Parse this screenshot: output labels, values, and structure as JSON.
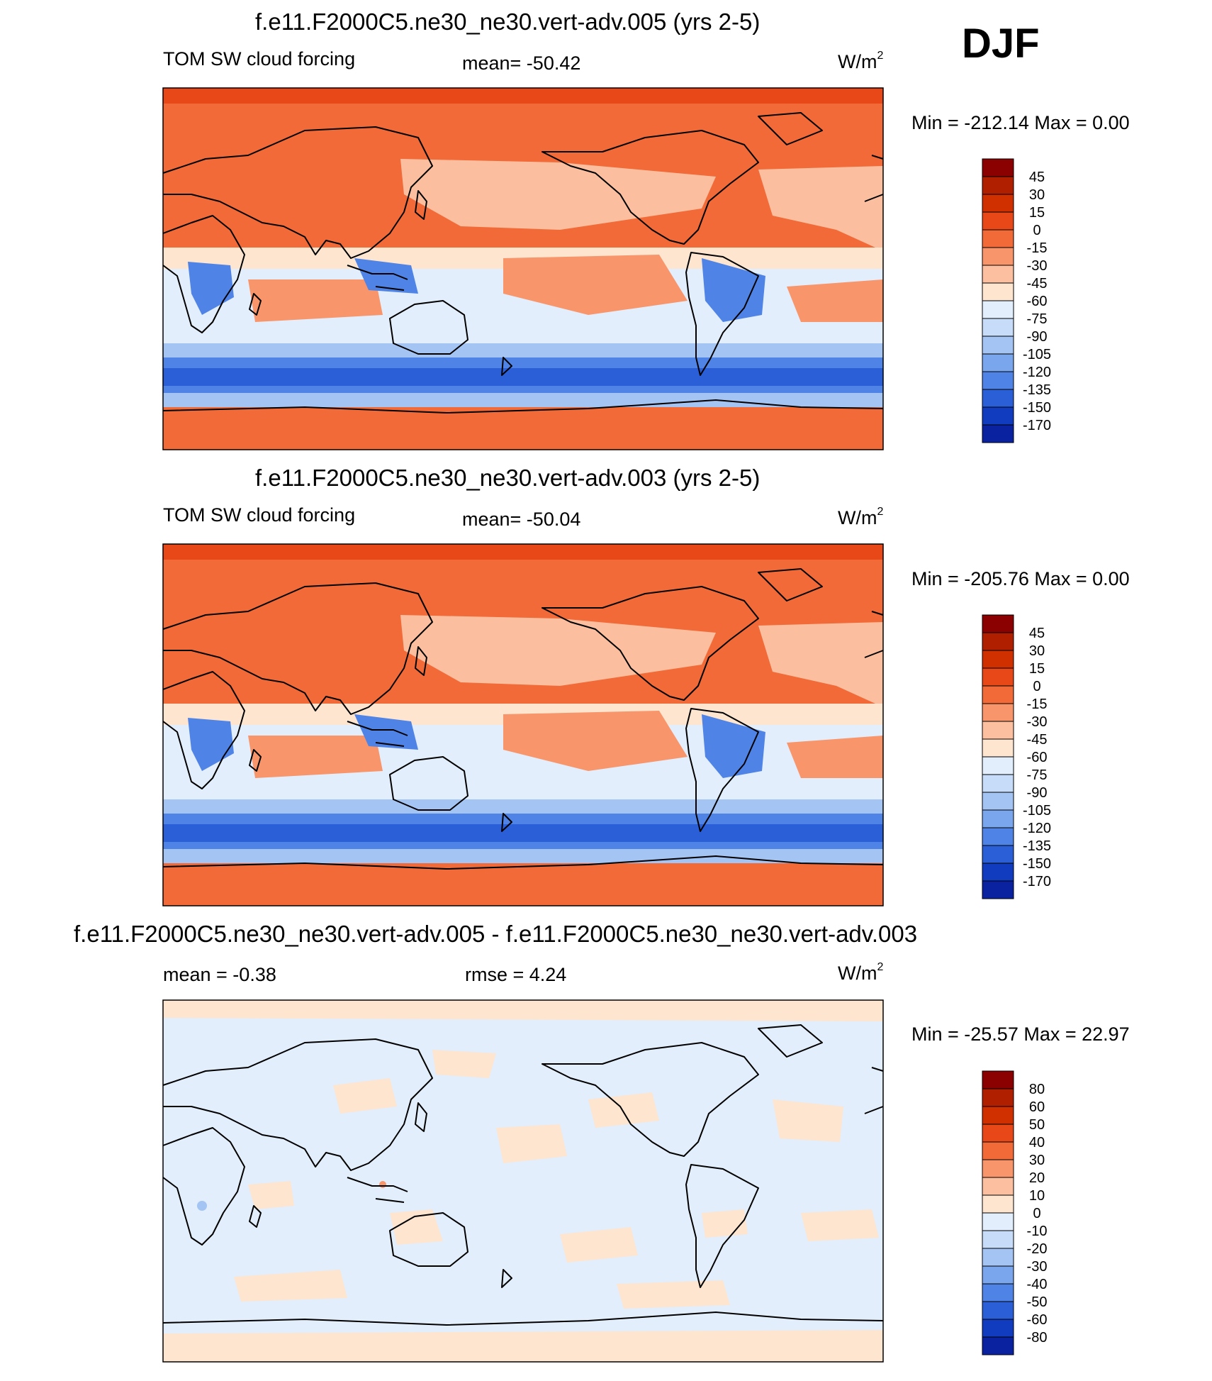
{
  "season": "DJF",
  "panels": [
    {
      "title": "f.e11.F2000C5.ne30_ne30.vert-adv.005 (yrs 2-5)",
      "field": "TOM SW cloud forcing",
      "stat1": "mean= -50.42",
      "stat2": "",
      "units_base": "W/m",
      "units_exp": "2",
      "minmax": "Min = -212.14 Max =    0.00",
      "colorbar": {
        "labels": [
          "45",
          "30",
          "15",
          "0",
          "-15",
          "-30",
          "-45",
          "-60",
          "-75",
          "-90",
          "-105",
          "-120",
          "-135",
          "-150",
          "-170"
        ],
        "colors": [
          "#8b0000",
          "#b02000",
          "#d03000",
          "#e84818",
          "#f26a38",
          "#f8956a",
          "#fcbfa0",
          "#fde5d0",
          "#e2eefc",
          "#c6dcf8",
          "#a4c4f4",
          "#7aa6ee",
          "#4f84e6",
          "#2a5fd8",
          "#123cc0",
          "#0a22a0"
        ]
      }
    },
    {
      "title": "f.e11.F2000C5.ne30_ne30.vert-adv.003 (yrs 2-5)",
      "field": "TOM SW cloud forcing",
      "stat1": "mean= -50.04",
      "stat2": "",
      "units_base": "W/m",
      "units_exp": "2",
      "minmax": "Min = -205.76 Max =    0.00",
      "colorbar": {
        "labels": [
          "45",
          "30",
          "15",
          "0",
          "-15",
          "-30",
          "-45",
          "-60",
          "-75",
          "-90",
          "-105",
          "-120",
          "-135",
          "-150",
          "-170"
        ],
        "colors": [
          "#8b0000",
          "#b02000",
          "#d03000",
          "#e84818",
          "#f26a38",
          "#f8956a",
          "#fcbfa0",
          "#fde5d0",
          "#e2eefc",
          "#c6dcf8",
          "#a4c4f4",
          "#7aa6ee",
          "#4f84e6",
          "#2a5fd8",
          "#123cc0",
          "#0a22a0"
        ]
      }
    },
    {
      "title": "f.e11.F2000C5.ne30_ne30.vert-adv.005 - f.e11.F2000C5.ne30_ne30.vert-adv.003",
      "field": "",
      "stat1": "mean =  -0.38",
      "stat2": "rmse =   4.24",
      "units_base": "W/m",
      "units_exp": "2",
      "minmax": "Min = -25.57 Max =  22.97",
      "colorbar": {
        "labels": [
          "80",
          "60",
          "50",
          "40",
          "30",
          "20",
          "10",
          "0",
          "-10",
          "-20",
          "-30",
          "-40",
          "-50",
          "-60",
          "-80"
        ],
        "colors": [
          "#8b0000",
          "#b02000",
          "#d03000",
          "#e84818",
          "#f26a38",
          "#f8956a",
          "#fcbfa0",
          "#fde5d0",
          "#e2eefc",
          "#c6dcf8",
          "#a4c4f4",
          "#7aa6ee",
          "#4f84e6",
          "#2a5fd8",
          "#123cc0",
          "#0a22a0"
        ]
      }
    }
  ],
  "chart_data": [
    {
      "type": "heatmap",
      "title": "f.e11.F2000C5.ne30_ne30.vert-adv.005 (yrs 2-5)",
      "variable": "TOM SW cloud forcing",
      "units": "W/m2",
      "mean": -50.42,
      "min": -212.14,
      "max": 0.0,
      "levels": [
        -170,
        -150,
        -135,
        -120,
        -105,
        -90,
        -75,
        -60,
        -45,
        -30,
        -15,
        0,
        15,
        30,
        45
      ],
      "projection": "cylindrical equidistant, Pacific-centered"
    },
    {
      "type": "heatmap",
      "title": "f.e11.F2000C5.ne30_ne30.vert-adv.003 (yrs 2-5)",
      "variable": "TOM SW cloud forcing",
      "units": "W/m2",
      "mean": -50.04,
      "min": -205.76,
      "max": 0.0,
      "levels": [
        -170,
        -150,
        -135,
        -120,
        -105,
        -90,
        -75,
        -60,
        -45,
        -30,
        -15,
        0,
        15,
        30,
        45
      ],
      "projection": "cylindrical equidistant, Pacific-centered"
    },
    {
      "type": "heatmap",
      "title": "f.e11.F2000C5.ne30_ne30.vert-adv.005 - f.e11.F2000C5.ne30_ne30.vert-adv.003",
      "units": "W/m2",
      "mean": -0.38,
      "rmse": 4.24,
      "min": -25.57,
      "max": 22.97,
      "levels": [
        -80,
        -60,
        -50,
        -40,
        -30,
        -20,
        -10,
        0,
        10,
        20,
        30,
        40,
        50,
        60,
        80
      ],
      "projection": "cylindrical equidistant, Pacific-centered"
    }
  ]
}
